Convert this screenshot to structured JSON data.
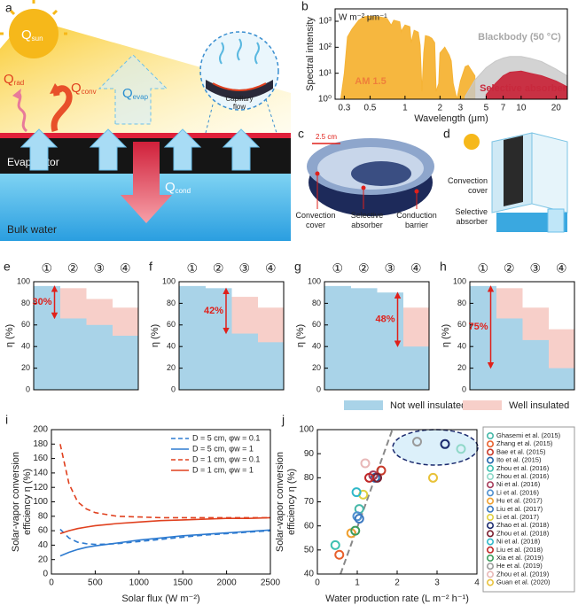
{
  "panel_a": {
    "panel": "a",
    "q_sun": {
      "base": "Q",
      "sub": "sun"
    },
    "q_rad": {
      "base": "Q",
      "sub": "rad"
    },
    "q_conv": {
      "base": "Q",
      "sub": "conv"
    },
    "q_evap": {
      "base": "Q",
      "sub": "evap"
    },
    "capillary": [
      "Capillary",
      "flow"
    ],
    "evaporator": "Evaporator",
    "q_cond": {
      "base": "Q",
      "sub": "cond"
    },
    "bulk_water": "Bulk water"
  },
  "panel_c": {
    "panel": "c",
    "scale": "2.5 cm",
    "labels": [
      [
        "Convection",
        "cover"
      ],
      [
        "Selective",
        "absorber"
      ],
      [
        "Conduction",
        "barrier"
      ]
    ]
  },
  "panel_d": {
    "panel": "d",
    "labels": [
      [
        "Convection",
        "cover"
      ],
      [
        "Selective",
        "absorber"
      ]
    ]
  },
  "chart_data": [
    {
      "panel": "b",
      "type": "area",
      "ylabel": "Spectral intensity",
      "unit_label": "W m⁻² μm⁻¹",
      "xlabel": "Wavelength (μm)",
      "xscale": "log",
      "yscale": "log",
      "xlim": [
        0.25,
        25
      ],
      "ylim": [
        1,
        3000
      ],
      "xticks": [
        0.3,
        0.5,
        1,
        2,
        3,
        5,
        7,
        10,
        20
      ],
      "yticks": [
        {
          "value": 1,
          "label": "10⁰"
        },
        {
          "value": 10,
          "label": "10¹"
        },
        {
          "value": 100,
          "label": "10²"
        },
        {
          "value": 1000,
          "label": "10³"
        }
      ],
      "series": [
        {
          "name": "AM 1.5",
          "color": "#f5b335",
          "text_color": "#ef7f3a",
          "x": [
            0.28,
            0.3,
            0.32,
            0.35,
            0.4,
            0.45,
            0.5,
            0.55,
            0.6,
            0.7,
            0.76,
            0.8,
            0.9,
            0.93,
            0.95,
            1.0,
            1.1,
            1.13,
            1.2,
            1.3,
            1.35,
            1.4,
            1.45,
            1.5,
            1.6,
            1.7,
            1.8,
            1.85,
            1.95,
            2.0,
            2.2,
            2.4,
            2.5,
            2.6,
            2.8,
            3.0,
            3.3,
            3.5,
            4.0
          ],
          "values": [
            1,
            10,
            250,
            500,
            1100,
            1500,
            1550,
            1500,
            1480,
            1280,
            700,
            1100,
            950,
            400,
            500,
            720,
            620,
            150,
            450,
            380,
            120,
            2,
            60,
            280,
            260,
            220,
            150,
            2,
            4,
            60,
            100,
            50,
            30,
            4,
            1,
            5,
            18,
            20,
            8
          ]
        },
        {
          "name": "Blackbody (50 °C)",
          "color": "#c8c8c8",
          "text_color": "#a8a8a8",
          "x": [
            3.3,
            4,
            5,
            6,
            7,
            8,
            10,
            12,
            15,
            20,
            25
          ],
          "values": [
            1.3,
            5.5,
            16.3,
            29,
            38.5,
            43.9,
            44,
            37.5,
            28,
            14.3,
            7.8
          ]
        },
        {
          "name": "Selective absorber",
          "color": "#c8283c",
          "text_color": "#c8283c",
          "x": [
            5,
            6,
            7,
            8,
            10,
            12,
            15,
            20,
            25
          ],
          "values": [
            1.5,
            4,
            8,
            11,
            12,
            10,
            8,
            5,
            3
          ]
        }
      ]
    },
    {
      "panel": "e",
      "type": "step",
      "ylabel": "η (%)",
      "ylim": [
        0,
        100
      ],
      "yticks": [
        0,
        20,
        40,
        60,
        80,
        100
      ],
      "categories": [
        "①",
        "②",
        "③",
        "④"
      ],
      "series": [
        {
          "color": "#a9d3e8",
          "values": [
            96,
            66,
            60,
            50
          ]
        },
        {
          "color": "#f7cfc9",
          "values": [
            null,
            94,
            84,
            76
          ]
        }
      ],
      "arrow": {
        "label": "30%",
        "from": 96,
        "to": 66
      }
    },
    {
      "panel": "f",
      "type": "step",
      "ylabel": "η (%)",
      "ylim": [
        0,
        100
      ],
      "yticks": [
        0,
        20,
        40,
        60,
        80,
        100
      ],
      "categories": [
        "①",
        "②",
        "③",
        "④"
      ],
      "series": [
        {
          "color": "#a9d3e8",
          "values": [
            96,
            94,
            52,
            44
          ]
        },
        {
          "color": "#f7cfc9",
          "values": [
            null,
            null,
            86,
            76
          ]
        }
      ],
      "arrow": {
        "label": "42%",
        "from": 94,
        "to": 52
      }
    },
    {
      "panel": "g",
      "type": "step",
      "ylabel": "η (%)",
      "ylim": [
        0,
        100
      ],
      "yticks": [
        0,
        20,
        40,
        60,
        80,
        100
      ],
      "categories": [
        "①",
        "②",
        "③",
        "④"
      ],
      "series": [
        {
          "color": "#a9d3e8",
          "values": [
            96,
            94,
            90,
            40
          ]
        },
        {
          "color": "#f7cfc9",
          "values": [
            null,
            null,
            null,
            76
          ]
        }
      ],
      "arrow": {
        "label": "48%",
        "from": 90,
        "to": 40
      }
    },
    {
      "panel": "h",
      "type": "step",
      "ylabel": "η (%)",
      "ylim": [
        0,
        100
      ],
      "yticks": [
        0,
        20,
        40,
        60,
        80,
        100
      ],
      "categories": [
        "①",
        "②",
        "③",
        "④"
      ],
      "series": [
        {
          "name": "Not well insulated",
          "color": "#a9d3e8",
          "values": [
            96,
            66,
            46,
            20
          ]
        },
        {
          "name": "Well insulated",
          "color": "#f7cfc9",
          "values": [
            null,
            94,
            76,
            56
          ]
        }
      ],
      "arrow": {
        "label": "75%",
        "from": 96,
        "to": 20
      }
    },
    {
      "panel": "i",
      "type": "line",
      "xlabel": "Solar flux (W m⁻²)",
      "ylabel": [
        "Solar-vapor conversion",
        "efficiency η (%)"
      ],
      "xlim": [
        0,
        2500
      ],
      "ylim": [
        0,
        200
      ],
      "xticks": [
        0,
        500,
        1000,
        1500,
        2000,
        2500
      ],
      "yticks": [
        0,
        20,
        40,
        60,
        80,
        100,
        120,
        140,
        160,
        180,
        200
      ],
      "legend": "upper right",
      "x": [
        100,
        200,
        300,
        400,
        500,
        750,
        1000,
        1250,
        1500,
        1750,
        2000,
        2250,
        2500
      ],
      "series": [
        {
          "name": "D = 5 cm, φw = 0.1",
          "color": "#2e7bd0",
          "dash": true,
          "values": [
            62,
            50,
            44,
            42,
            41,
            42,
            45,
            48,
            51,
            54,
            56,
            58,
            60
          ]
        },
        {
          "name": "D = 5 cm, φw = 1",
          "color": "#2e7bd0",
          "dash": false,
          "values": [
            25,
            30,
            34,
            37,
            39,
            43,
            47,
            50,
            53,
            55,
            57,
            59,
            61
          ]
        },
        {
          "name": "D = 1 cm, φw = 0.1",
          "color": "#e0401e",
          "dash": true,
          "values": [
            180,
            125,
            100,
            90,
            85,
            80,
            79,
            78,
            78,
            78,
            78,
            78,
            78
          ]
        },
        {
          "name": "D = 1 cm, φw = 1",
          "color": "#e0401e",
          "dash": false,
          "values": [
            56,
            60,
            63,
            65,
            67,
            70,
            72,
            74,
            75,
            76,
            77,
            77,
            78
          ]
        }
      ]
    },
    {
      "panel": "j",
      "type": "scatter",
      "xlabel": "Water production rate (L m⁻² h⁻¹)",
      "ylabel": [
        "Solar-vapor conversion",
        "efficiency η (%)"
      ],
      "xlim": [
        0,
        4
      ],
      "ylim": [
        40,
        100
      ],
      "xticks": [
        0,
        1,
        2,
        3,
        4
      ],
      "yticks": [
        40,
        50,
        60,
        70,
        80,
        90,
        100
      ],
      "trend": {
        "color": "#888888",
        "x": [
          0.58,
          1.88
        ],
        "y": [
          40,
          100
        ]
      },
      "series": [
        {
          "name": "Ghasemi et al. (2015)",
          "color": "#45b8a8",
          "x": [
            1.05
          ],
          "values": [
            67
          ]
        },
        {
          "name": "Zhang et al. (2015)",
          "color": "#e8602c",
          "x": [
            0.55
          ],
          "values": [
            48
          ]
        },
        {
          "name": "Bae et al. (2015)",
          "color": "#c83a2a",
          "x": [
            1.6
          ],
          "values": [
            83
          ]
        },
        {
          "name": "Ito et al. (2015)",
          "color": "#2166ac",
          "x": [
            1.45
          ],
          "values": [
            80
          ]
        },
        {
          "name": "Zhou et al. (2016)",
          "color": "#3ec0b0",
          "x": [
            0.45
          ],
          "values": [
            52
          ]
        },
        {
          "name": "Zhou et al. (2016)",
          "color": "#8fd8c8",
          "x": [
            3.6
          ],
          "values": [
            92
          ]
        },
        {
          "name": "Ni et al. (2016)",
          "color": "#a63a5a",
          "x": [
            1.4
          ],
          "values": [
            81
          ]
        },
        {
          "name": "Li et al. (2016)",
          "color": "#5090d0",
          "x": [
            1.0
          ],
          "values": [
            64
          ]
        },
        {
          "name": "Hu et al. (2017)",
          "color": "#f0a030",
          "x": [
            0.85
          ],
          "values": [
            57
          ]
        },
        {
          "name": "Liu et al. (2017)",
          "color": "#3b78c0",
          "x": [
            1.05
          ],
          "values": [
            63
          ]
        },
        {
          "name": "Li et al. (2017)",
          "color": "#e0d040",
          "x": [
            1.15
          ],
          "values": [
            73
          ]
        },
        {
          "name": "Zhao et al. (2018)",
          "color": "#1b2a6e",
          "x": [
            3.2
          ],
          "values": [
            94
          ]
        },
        {
          "name": "Zhou et al. (2018)",
          "color": "#7a1f30",
          "x": [
            1.5
          ],
          "values": [
            80
          ]
        },
        {
          "name": "Ni et al. (2018)",
          "color": "#30b8c8",
          "x": [
            0.98
          ],
          "values": [
            74
          ]
        },
        {
          "name": "Liu et al. (2018)",
          "color": "#c02828",
          "x": [
            1.3
          ],
          "values": [
            80
          ]
        },
        {
          "name": "Xia et al. (2019)",
          "color": "#3c9c5c",
          "x": [
            0.95
          ],
          "values": [
            58
          ]
        },
        {
          "name": "He et al. (2019)",
          "color": "#9a9a9a",
          "x": [
            2.5
          ],
          "values": [
            95
          ]
        },
        {
          "name": "Zhou et al. (2019)",
          "color": "#e8b8b8",
          "x": [
            1.2
          ],
          "values": [
            86
          ]
        },
        {
          "name": "Guan et al. (2020)",
          "color": "#e8c23a",
          "x": [
            2.9
          ],
          "values": [
            80
          ]
        }
      ]
    }
  ]
}
